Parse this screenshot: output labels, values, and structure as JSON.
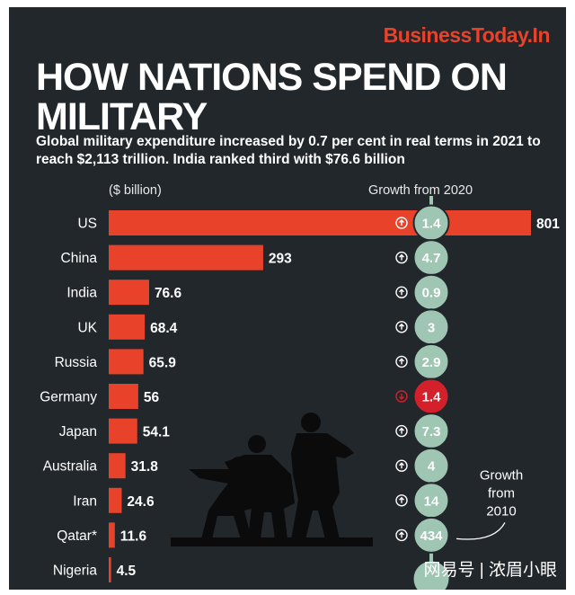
{
  "brand": "BusinessToday.In",
  "title": "HOW NATIONS SPEND ON MILITARY",
  "subtitle": "Global military expenditure increased by 0.7 per cent in real terms in 2021 to reach $2,113 trillion. India ranked third with $76.6 billion",
  "watermark": "网易号 | 浓眉小眼",
  "colors": {
    "background": "#22272c",
    "bar": "#e8432a",
    "growth_circle": "#9fc5b3",
    "growth_circle_down": "#d4202b"
  },
  "chart_data": {
    "type": "bar",
    "orientation": "horizontal",
    "unit_label": "($ billion)",
    "categories": [
      "US",
      "China",
      "India",
      "UK",
      "Russia",
      "Germany",
      "Japan",
      "Australia",
      "Iran",
      "Qatar*",
      "Nigeria"
    ],
    "values": [
      801,
      293,
      76.6,
      68.4,
      65.9,
      56,
      54.1,
      31.8,
      24.6,
      11.6,
      4.5
    ],
    "value_labels": [
      "801",
      "293",
      "76.6",
      "68.4",
      "65.9",
      "56",
      "54.1",
      "31.8",
      "24.6",
      "11.6",
      "4.5"
    ],
    "growth_title": "Growth from 2020",
    "growth": [
      1.4,
      4.7,
      0.9,
      3,
      2.9,
      -1.4,
      7.3,
      4,
      14,
      434,
      null
    ],
    "growth_labels": [
      "1.4",
      "4.7",
      "0.9",
      "3",
      "2.9",
      "1.4",
      "7.3",
      "4",
      "14",
      "434",
      ""
    ],
    "growth_direction": [
      "up",
      "up",
      "up",
      "up",
      "up",
      "down",
      "up",
      "up",
      "up",
      "up",
      "up"
    ],
    "annotation": "Growth from 2010",
    "annotation_target": "Qatar*",
    "xlim": [
      0,
      801
    ]
  }
}
